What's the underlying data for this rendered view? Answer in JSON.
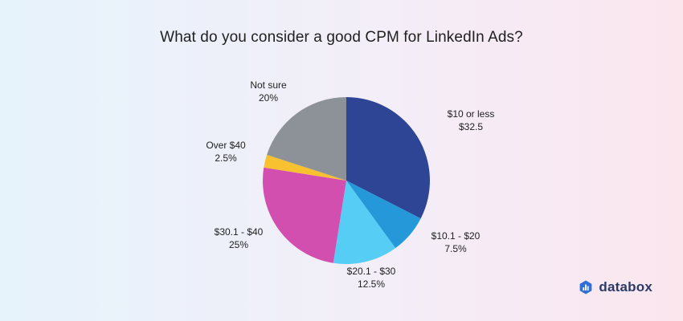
{
  "brand": {
    "name": "databox",
    "icon": "databox-logo-icon"
  },
  "chart_data": {
    "type": "pie",
    "title": "What do you consider a good CPM for LinkedIn Ads?",
    "start_angle_deg": 0,
    "direction": "clockwise",
    "slices": [
      {
        "label": "$10 or less",
        "value_label": "$32.5",
        "value": 32.5,
        "color": "#2e4596"
      },
      {
        "label": "$10.1 - $20",
        "value_label": "7.5%",
        "value": 7.5,
        "color": "#2498d8"
      },
      {
        "label": "$20.1 - $30",
        "value_label": "12.5%",
        "value": 12.5,
        "color": "#56cdf4"
      },
      {
        "label": "$30.1 - $40",
        "value_label": "25%",
        "value": 25,
        "color": "#d24fb0"
      },
      {
        "label": "Over $40",
        "value_label": "2.5%",
        "value": 2.5,
        "color": "#f7c12f"
      },
      {
        "label": "Not sure",
        "value_label": "20%",
        "value": 20,
        "color": "#8d9299"
      }
    ]
  }
}
